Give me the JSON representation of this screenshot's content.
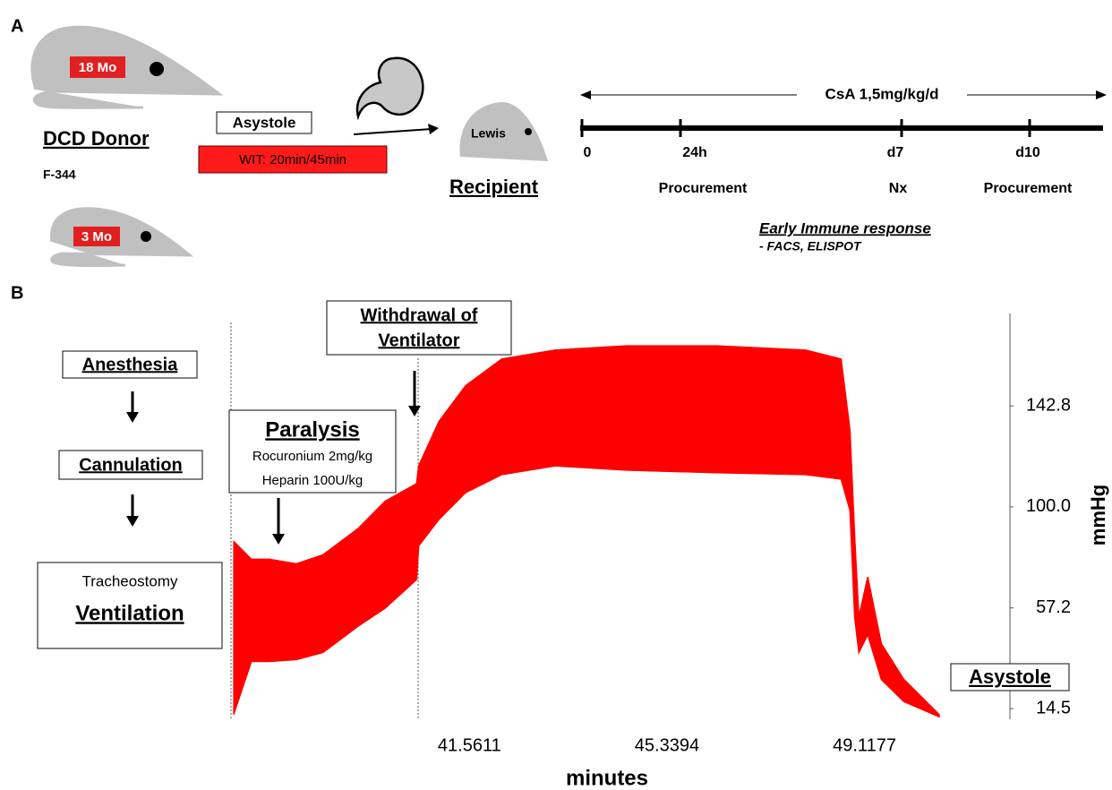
{
  "panel_a": {
    "label": "A",
    "donor_old_age": "18 Mo",
    "donor_young_age": "3 Mo",
    "donor_title": "DCD Donor",
    "donor_strain": "F-344",
    "asystole": "Asystole",
    "wit": "WIT: 20min/45min",
    "recipient_strain": "Lewis",
    "recipient_title": "Recipient",
    "csa": "CsA 1,5mg/kg/d",
    "timepoints": [
      "0",
      "24h",
      "d7",
      "d10"
    ],
    "events": [
      "Procurement",
      "Nx",
      "Procurement"
    ],
    "immune_title": "Early Immune response",
    "immune_methods": "- FACS, ELISPOT"
  },
  "panel_b": {
    "label": "B",
    "anesthesia": "Anesthesia",
    "cannulation": "Cannulation",
    "tracheostomy": "Tracheostomy",
    "ventilation": "Ventilation",
    "paralysis": "Paralysis",
    "rocuronium": "Rocuronium 2mg/kg",
    "heparin": "Heparin 100U/kg",
    "withdrawal": [
      "Withdrawal of",
      "Ventilator"
    ],
    "asystole": "Asystole"
  },
  "chart_data": {
    "type": "range_area",
    "color": "#ff0000",
    "xlabel": "minutes",
    "ylabel": "mmHg",
    "x": [
      37.05,
      37.39,
      37.73,
      38.25,
      38.76,
      39.44,
      39.95,
      40.55,
      40.59,
      40.98,
      41.49,
      42.18,
      43.2,
      44.57,
      46.28,
      47.99,
      48.67,
      48.84,
      48.93,
      49.01,
      49.18,
      49.44,
      49.87,
      50.55
    ],
    "lows": [
      12,
      34.5,
      34.5,
      35.3,
      38.3,
      49.6,
      57.1,
      69.2,
      83.5,
      94.8,
      106.1,
      113.7,
      117.4,
      115.6,
      114.5,
      113.7,
      111.8,
      98.6,
      53.3,
      38.3,
      45.8,
      26.9,
      17.5,
      11
    ],
    "highs": [
      85.4,
      77.8,
      77.8,
      75.9,
      79.7,
      91,
      102.4,
      109.9,
      117.4,
      136.3,
      151.4,
      162.7,
      166.5,
      168.3,
      168.3,
      166.5,
      162.7,
      132.5,
      87.3,
      53.3,
      70.3,
      42,
      26.9,
      11.9
    ],
    "xlim": [
      37.0,
      51.9
    ],
    "ylim": [
      10,
      182
    ],
    "xticks": [
      41.5611,
      45.3394,
      49.1177
    ],
    "yticks": [
      14.5,
      57.2,
      {
        "value": 100,
        "label": "100.0"
      },
      142.8
    ]
  }
}
